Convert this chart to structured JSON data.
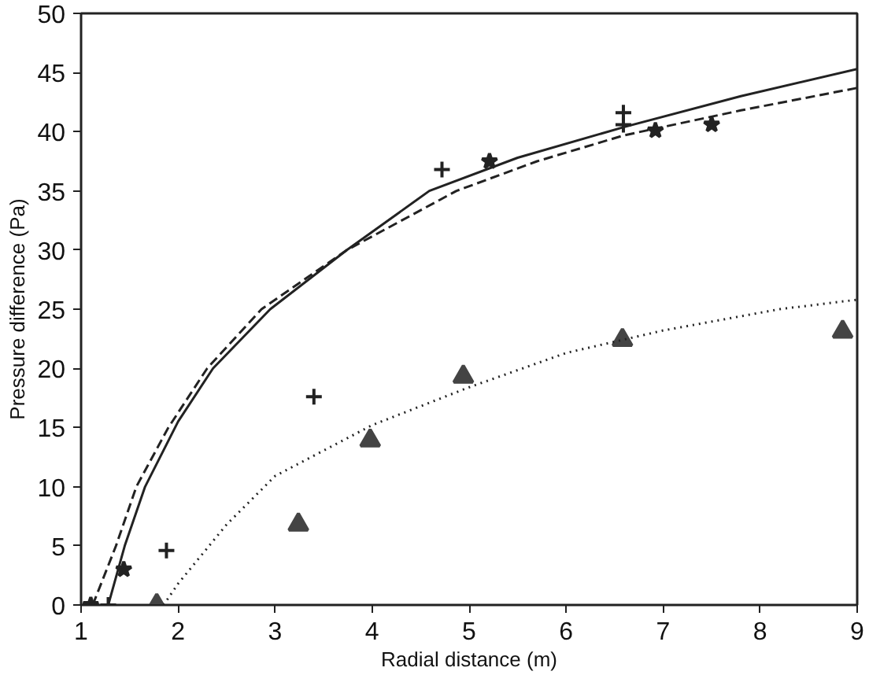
{
  "chart_data": {
    "type": "scatter",
    "xlabel": "Radial distance (m)",
    "ylabel": "Pressure difference (Pa)",
    "xlim": [
      1,
      9
    ],
    "ylim": [
      0,
      50
    ],
    "xticks": [
      1,
      2,
      3,
      4,
      5,
      6,
      7,
      8,
      9
    ],
    "yticks": [
      0,
      5,
      10,
      15,
      20,
      25,
      30,
      35,
      40,
      45,
      50
    ],
    "series": [
      {
        "marker": "cross",
        "color": "#222222",
        "x": [
          1.28,
          1.88,
          3.4,
          4.72,
          6.59,
          6.59
        ],
        "values": [
          0,
          4.6,
          17.6,
          36.8,
          40.6,
          41.6
        ]
      },
      {
        "marker": "star",
        "color": "#222222",
        "x": [
          1.1,
          1.44,
          5.21,
          6.92,
          7.5
        ],
        "values": [
          0,
          3.0,
          37.5,
          40.1,
          40.6
        ]
      },
      {
        "marker": "triangle",
        "color": "#444444",
        "x": [
          1.78,
          3.24,
          3.98,
          4.94,
          6.58,
          8.85
        ],
        "values": [
          0,
          6.8,
          13.9,
          19.3,
          22.4,
          23.1
        ]
      },
      {
        "type": "line",
        "line_style": "solid",
        "color": "#222222",
        "x": [
          1.28,
          1.45,
          1.66,
          2.0,
          2.36,
          2.95,
          3.74,
          4.59,
          5.5,
          6.6,
          7.8,
          9
        ],
        "values": [
          0,
          5,
          10,
          15.5,
          20,
          25,
          30,
          35,
          37.8,
          40.4,
          43,
          45.3
        ]
      },
      {
        "type": "line",
        "line_style": "dashed",
        "color": "#222222",
        "x": [
          1.12,
          1.36,
          1.57,
          1.9,
          2.3,
          2.86,
          3.74,
          4.87,
          5.7,
          6.6,
          7.8,
          9
        ],
        "values": [
          0,
          5,
          10,
          15,
          20,
          25,
          30,
          35,
          37.5,
          39.7,
          41.8,
          43.7
        ]
      },
      {
        "type": "line",
        "line_style": "dotted",
        "color": "#222222",
        "x": [
          1.85,
          2.0,
          2.5,
          3.0,
          4.0,
          5.0,
          6.0,
          7.0,
          8.2,
          9.0
        ],
        "values": [
          0,
          1.8,
          6.8,
          10.9,
          15.2,
          18.4,
          21.3,
          23.2,
          25.0,
          25.8
        ]
      }
    ]
  }
}
